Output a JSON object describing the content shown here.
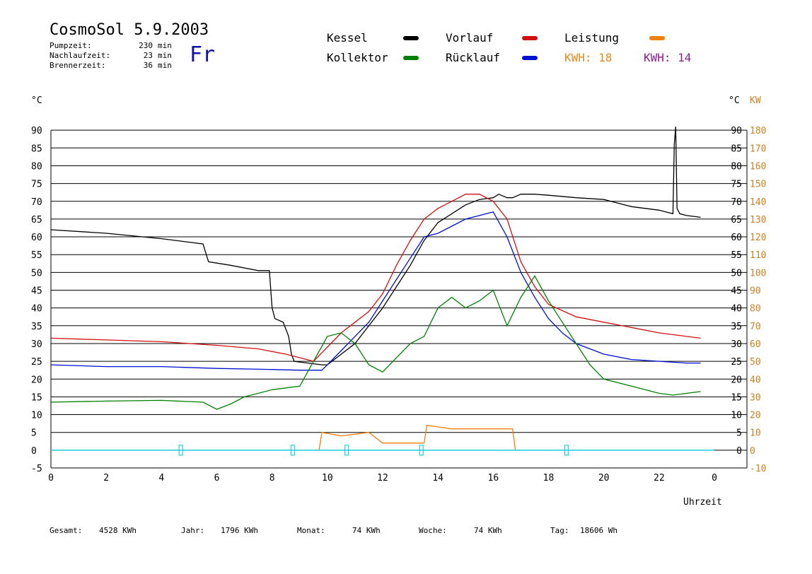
{
  "header": {
    "title": "CosmoSol 5.9.2003",
    "day": "Fr",
    "info": [
      {
        "label": "Pumpzeit:",
        "value": "230",
        "unit": "min"
      },
      {
        "label": "Nachlaufzeit:",
        "value": "23",
        "unit": "min"
      },
      {
        "label": "Brennerzeit:",
        "value": "36",
        "unit": "min"
      }
    ]
  },
  "legend": {
    "kessel": {
      "label": "Kessel",
      "color": "#000000"
    },
    "kollektor": {
      "label": "Kollektor",
      "color": "#008000"
    },
    "vorlauf": {
      "label": "Vorlauf",
      "color": "#d01010"
    },
    "ruecklauf": {
      "label": "Rücklauf",
      "color": "#0010d0"
    },
    "leistung": {
      "label": "Leistung",
      "color": "#f08010"
    },
    "kwh1": "KWH: 18",
    "kwh2": "KWH: 14"
  },
  "totals": [
    {
      "label": "Gesamt:",
      "value": "4528 KWh"
    },
    {
      "label": "Jahr:",
      "value": "1796 KWh"
    },
    {
      "label": "Monat:",
      "value": "74 KWh"
    },
    {
      "label": "Woche:",
      "value": "74 KWh"
    },
    {
      "label": "Tag:",
      "value": "18606 Wh"
    }
  ],
  "chart_data": {
    "type": "line",
    "xlabel": "Uhrzeit",
    "ylabel_left": "°C",
    "ylabel_right": "°C",
    "ylabel_right2": "KW",
    "xlim": [
      0,
      24
    ],
    "ylim": [
      -5,
      95
    ],
    "y2lim": [
      -10,
      190
    ],
    "x_ticks": [
      "0",
      "2",
      "4",
      "6",
      "8",
      "10",
      "12",
      "14",
      "16",
      "18",
      "20",
      "22",
      "0"
    ],
    "y_ticks": [
      "-5",
      "0",
      "5",
      "10",
      "15",
      "20",
      "25",
      "30",
      "35",
      "40",
      "45",
      "50",
      "55",
      "60",
      "65",
      "70",
      "75",
      "80",
      "85",
      "90"
    ],
    "y2_ticks": [
      "-10",
      "0",
      "10",
      "20",
      "30",
      "40",
      "50",
      "60",
      "70",
      "80",
      "90",
      "100",
      "110",
      "120",
      "130",
      "140",
      "150",
      "160",
      "170",
      "180"
    ],
    "grid": true,
    "series": [
      {
        "name": "Kessel",
        "color": "#000000",
        "x": [
          0,
          2,
          4,
          5.5,
          5.7,
          6.5,
          7.5,
          7.9,
          8.0,
          8.1,
          8.4,
          8.6,
          8.7,
          8.8,
          9.8,
          10.0,
          11.0,
          12.0,
          13.0,
          13.5,
          14.0,
          15.0,
          15.5,
          16.0,
          16.2,
          16.5,
          16.7,
          17.0,
          17.5,
          18.0,
          19.0,
          20.0,
          20.5,
          21.0,
          22.0,
          22.5,
          22.55,
          22.6,
          22.65,
          22.75,
          23.0,
          23.5
        ],
        "y": [
          62,
          61,
          59.5,
          58,
          53,
          52,
          50.5,
          50.5,
          40,
          37,
          36,
          32,
          27,
          25,
          24,
          24,
          30,
          40,
          52,
          59,
          64,
          69,
          70.5,
          71,
          72,
          71,
          71,
          72,
          72,
          71.7,
          71,
          70.5,
          69.5,
          68.5,
          67.5,
          66.5,
          86,
          91,
          68,
          66.5,
          66,
          65.5
        ]
      },
      {
        "name": "Vorlauf",
        "color": "#d01010",
        "x": [
          0,
          2,
          4,
          6,
          7.5,
          8.5,
          9.5,
          10.0,
          10.5,
          11.0,
          11.5,
          12.0,
          12.5,
          13.0,
          13.5,
          14.0,
          14.5,
          15.0,
          15.5,
          16.0,
          16.5,
          17.0,
          17.5,
          18.0,
          19.0,
          20.0,
          21.0,
          22.0,
          23.0,
          23.5
        ],
        "y": [
          31.5,
          31,
          30.5,
          29.5,
          28.5,
          27,
          25,
          29,
          33,
          36,
          39,
          44,
          52,
          59,
          65,
          68,
          70,
          72,
          72,
          70,
          65,
          53,
          46,
          41,
          37.5,
          36,
          34.5,
          33,
          32,
          31.5
        ]
      },
      {
        "name": "Rücklauf",
        "color": "#0010d0",
        "x": [
          0,
          2,
          4,
          6,
          8,
          9.0,
          9.8,
          10.0,
          10.5,
          11.0,
          11.5,
          12.0,
          12.5,
          13.0,
          13.5,
          14.0,
          14.5,
          15.0,
          15.5,
          16.0,
          16.5,
          17.0,
          17.5,
          18.0,
          18.5,
          19.0,
          20.0,
          21.0,
          22.0,
          23.0,
          23.5
        ],
        "y": [
          24,
          23.5,
          23.5,
          23,
          22.7,
          22.5,
          22.5,
          24,
          28,
          32,
          36,
          42,
          48,
          54,
          60,
          61,
          63,
          65,
          66,
          67,
          60,
          50,
          43,
          37,
          33,
          30,
          27,
          25.5,
          25,
          24.5,
          24.5
        ]
      },
      {
        "name": "Kollektor",
        "color": "#008000",
        "x": [
          0,
          2,
          4,
          5.5,
          6.0,
          6.5,
          7.0,
          8.0,
          9.0,
          9.5,
          10.0,
          10.5,
          11.0,
          11.5,
          12.0,
          12.5,
          13.0,
          13.5,
          14.0,
          14.5,
          15.0,
          15.5,
          16.0,
          16.5,
          17.0,
          17.5,
          18.0,
          18.5,
          19.0,
          19.5,
          20.0,
          21.0,
          22.0,
          22.5,
          23.0,
          23.5
        ],
        "y": [
          13.5,
          13.8,
          14,
          13.5,
          11.5,
          13,
          15,
          17,
          18,
          25,
          32,
          33,
          30,
          24,
          22,
          26,
          30,
          32,
          40,
          43,
          40,
          42,
          45,
          35,
          43,
          49,
          42,
          36,
          30,
          24,
          20,
          18,
          16,
          15.5,
          16,
          16.5
        ]
      },
      {
        "name": "Leistung",
        "color": "#f08010",
        "x": [
          9.7,
          9.8,
          10.5,
          11.5,
          12.0,
          13.5,
          13.6,
          14.5,
          15.5,
          16.5,
          16.7,
          16.8
        ],
        "y": [
          0,
          5,
          4,
          5,
          2,
          2,
          7,
          6,
          6,
          6,
          6,
          0
        ]
      }
    ],
    "markers_x": [
      4.7,
      8.75,
      10.7,
      13.4,
      18.65
    ]
  }
}
